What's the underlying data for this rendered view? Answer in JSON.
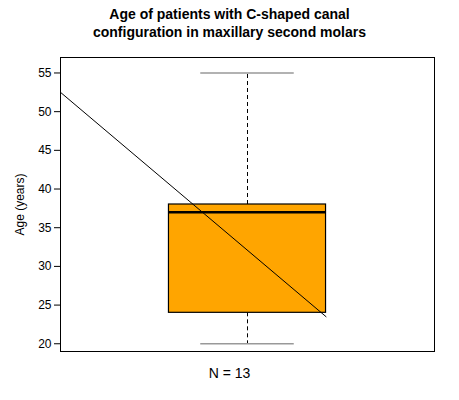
{
  "chart_data": {
    "type": "box",
    "title": "Age of patients with C-shaped canal\nconfiguration in maxillary second molars",
    "ylabel": "Age (years)",
    "caption": "N = 13",
    "x": [
      2.0
    ],
    "whisker_low": [
      20.0
    ],
    "q1": [
      24.0
    ],
    "median": [
      37.0
    ],
    "q3": [
      38.0
    ],
    "whisker_high": [
      55.0
    ],
    "color": "#FFA500",
    "diagonal": {
      "x": [
        1.0,
        2.42
      ],
      "y": [
        52.5,
        23.5
      ]
    },
    "xlim": [
      1.0,
      3.0
    ],
    "ylim": [
      19.0,
      57.0
    ],
    "yticks": [
      20,
      25,
      30,
      35,
      40,
      45,
      50,
      55
    ],
    "tick_labels": "y",
    "grid": false
  }
}
